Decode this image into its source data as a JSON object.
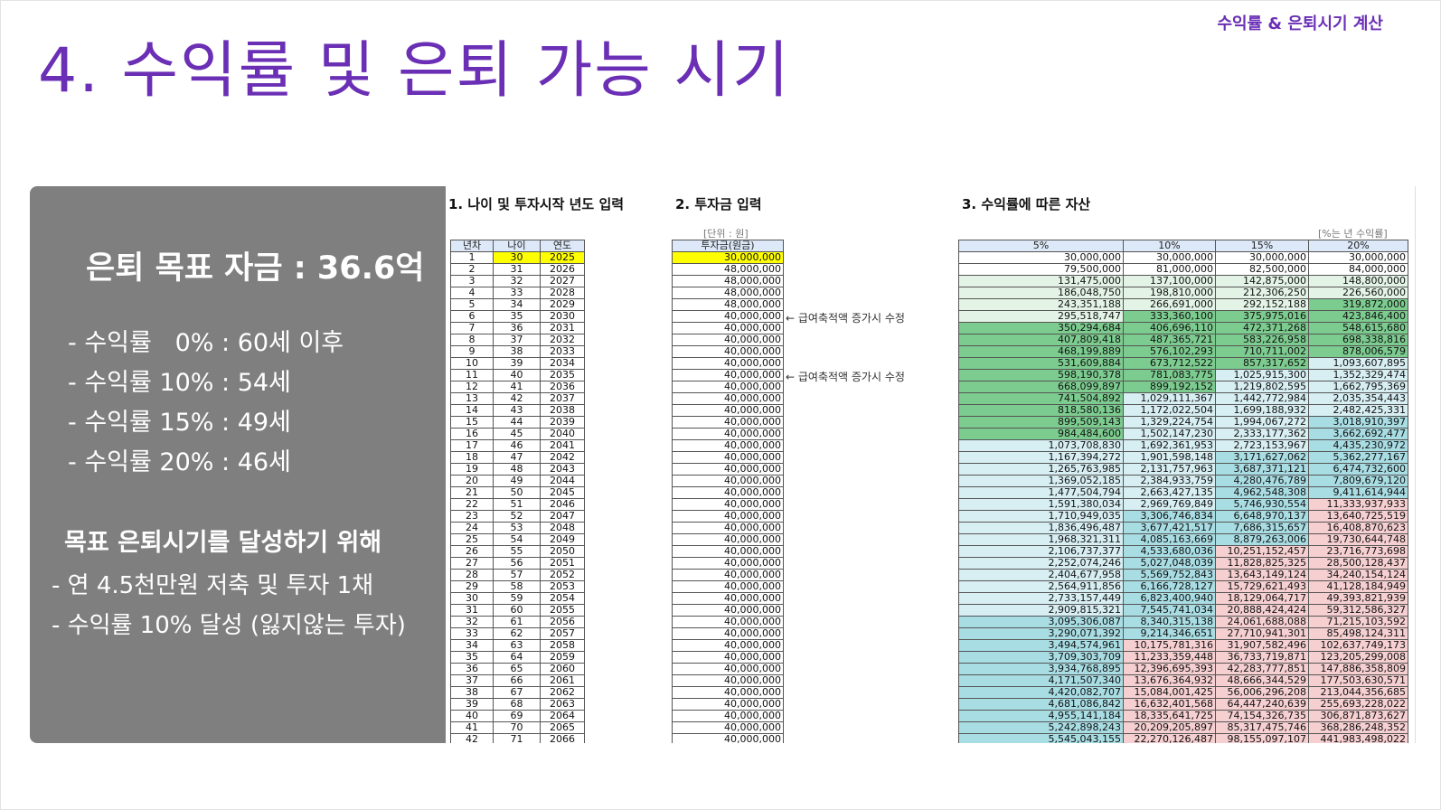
{
  "header": {
    "tag": "수익률 & 은퇴시기 계산",
    "title": "4. 수익률 및 은퇴 가능 시기"
  },
  "panel": {
    "headline": "은퇴 목표 자금 : 36.6억",
    "items": [
      "- 수익률   0% : 60세 이후",
      "- 수익률 10% : 54세",
      "- 수익률 15% : 49세",
      "- 수익률 20% : 46세"
    ],
    "subhead": "목표 은퇴시기를 달성하기 위해",
    "items2": [
      "- 연 4.5천만원 저축 및 투자 1채",
      "- 수익률 10% 달성 (잃지않는 투자)"
    ]
  },
  "sheet": {
    "sec1": "1. 나이 및 투자시작 년도 입력",
    "sec2": "2. 투자금 입력",
    "sec3": "3. 수익률에 따른 자산",
    "unit_won": "[단위 : 원]",
    "unit_rate": "[%는 년 수익률]",
    "col_year": "년차",
    "col_age": "나이",
    "col_yr": "연도",
    "col_inv": "투자금(원금)",
    "rates": [
      "5%",
      "10%",
      "15%",
      "20%"
    ],
    "note": "← 급여축적액 증가시 수정",
    "rows": [
      {
        "n": "1",
        "age": "30",
        "year": "2025",
        "inv": "30,000,000",
        "v": [
          "30,000,000",
          "30,000,000",
          "30,000,000",
          "30,000,000"
        ]
      },
      {
        "n": "2",
        "age": "31",
        "year": "2026",
        "inv": "48,000,000",
        "v": [
          "79,500,000",
          "81,000,000",
          "82,500,000",
          "84,000,000"
        ]
      },
      {
        "n": "3",
        "age": "32",
        "year": "2027",
        "inv": "48,000,000",
        "v": [
          "131,475,000",
          "137,100,000",
          "142,875,000",
          "148,800,000"
        ]
      },
      {
        "n": "4",
        "age": "33",
        "year": "2028",
        "inv": "48,000,000",
        "v": [
          "186,048,750",
          "198,810,000",
          "212,306,250",
          "226,560,000"
        ]
      },
      {
        "n": "5",
        "age": "34",
        "year": "2029",
        "inv": "48,000,000",
        "v": [
          "243,351,188",
          "266,691,000",
          "292,152,188",
          "319,872,000"
        ]
      },
      {
        "n": "6",
        "age": "35",
        "year": "2030",
        "inv": "40,000,000",
        "v": [
          "295,518,747",
          "333,360,100",
          "375,975,016",
          "423,846,400"
        ]
      },
      {
        "n": "7",
        "age": "36",
        "year": "2031",
        "inv": "40,000,000",
        "v": [
          "350,294,684",
          "406,696,110",
          "472,371,268",
          "548,615,680"
        ]
      },
      {
        "n": "8",
        "age": "37",
        "year": "2032",
        "inv": "40,000,000",
        "v": [
          "407,809,418",
          "487,365,721",
          "583,226,958",
          "698,338,816"
        ]
      },
      {
        "n": "9",
        "age": "38",
        "year": "2033",
        "inv": "40,000,000",
        "v": [
          "468,199,889",
          "576,102,293",
          "710,711,002",
          "878,006,579"
        ]
      },
      {
        "n": "10",
        "age": "39",
        "year": "2034",
        "inv": "40,000,000",
        "v": [
          "531,609,884",
          "673,712,522",
          "857,317,652",
          "1,093,607,895"
        ]
      },
      {
        "n": "11",
        "age": "40",
        "year": "2035",
        "inv": "40,000,000",
        "v": [
          "598,190,378",
          "781,083,775",
          "1,025,915,300",
          "1,352,329,474"
        ]
      },
      {
        "n": "12",
        "age": "41",
        "year": "2036",
        "inv": "40,000,000",
        "v": [
          "668,099,897",
          "899,192,152",
          "1,219,802,595",
          "1,662,795,369"
        ]
      },
      {
        "n": "13",
        "age": "42",
        "year": "2037",
        "inv": "40,000,000",
        "v": [
          "741,504,892",
          "1,029,111,367",
          "1,442,772,984",
          "2,035,354,443"
        ]
      },
      {
        "n": "14",
        "age": "43",
        "year": "2038",
        "inv": "40,000,000",
        "v": [
          "818,580,136",
          "1,172,022,504",
          "1,699,188,932",
          "2,482,425,331"
        ]
      },
      {
        "n": "15",
        "age": "44",
        "year": "2039",
        "inv": "40,000,000",
        "v": [
          "899,509,143",
          "1,329,224,754",
          "1,994,067,272",
          "3,018,910,397"
        ]
      },
      {
        "n": "16",
        "age": "45",
        "year": "2040",
        "inv": "40,000,000",
        "v": [
          "984,484,600",
          "1,502,147,230",
          "2,333,177,362",
          "3,662,692,477"
        ]
      },
      {
        "n": "17",
        "age": "46",
        "year": "2041",
        "inv": "40,000,000",
        "v": [
          "1,073,708,830",
          "1,692,361,953",
          "2,723,153,967",
          "4,435,230,972"
        ]
      },
      {
        "n": "18",
        "age": "47",
        "year": "2042",
        "inv": "40,000,000",
        "v": [
          "1,167,394,272",
          "1,901,598,148",
          "3,171,627,062",
          "5,362,277,167"
        ]
      },
      {
        "n": "19",
        "age": "48",
        "year": "2043",
        "inv": "40,000,000",
        "v": [
          "1,265,763,985",
          "2,131,757,963",
          "3,687,371,121",
          "6,474,732,600"
        ]
      },
      {
        "n": "20",
        "age": "49",
        "year": "2044",
        "inv": "40,000,000",
        "v": [
          "1,369,052,185",
          "2,384,933,759",
          "4,280,476,789",
          "7,809,679,120"
        ]
      },
      {
        "n": "21",
        "age": "50",
        "year": "2045",
        "inv": "40,000,000",
        "v": [
          "1,477,504,794",
          "2,663,427,135",
          "4,962,548,308",
          "9,411,614,944"
        ]
      },
      {
        "n": "22",
        "age": "51",
        "year": "2046",
        "inv": "40,000,000",
        "v": [
          "1,591,380,034",
          "2,969,769,849",
          "5,746,930,554",
          "11,333,937,933"
        ]
      },
      {
        "n": "23",
        "age": "52",
        "year": "2047",
        "inv": "40,000,000",
        "v": [
          "1,710,949,035",
          "3,306,746,834",
          "6,648,970,137",
          "13,640,725,519"
        ]
      },
      {
        "n": "24",
        "age": "53",
        "year": "2048",
        "inv": "40,000,000",
        "v": [
          "1,836,496,487",
          "3,677,421,517",
          "7,686,315,657",
          "16,408,870,623"
        ]
      },
      {
        "n": "25",
        "age": "54",
        "year": "2049",
        "inv": "40,000,000",
        "v": [
          "1,968,321,311",
          "4,085,163,669",
          "8,879,263,006",
          "19,730,644,748"
        ]
      },
      {
        "n": "26",
        "age": "55",
        "year": "2050",
        "inv": "40,000,000",
        "v": [
          "2,106,737,377",
          "4,533,680,036",
          "10,251,152,457",
          "23,716,773,698"
        ]
      },
      {
        "n": "27",
        "age": "56",
        "year": "2051",
        "inv": "40,000,000",
        "v": [
          "2,252,074,246",
          "5,027,048,039",
          "11,828,825,325",
          "28,500,128,437"
        ]
      },
      {
        "n": "28",
        "age": "57",
        "year": "2052",
        "inv": "40,000,000",
        "v": [
          "2,404,677,958",
          "5,569,752,843",
          "13,643,149,124",
          "34,240,154,124"
        ]
      },
      {
        "n": "29",
        "age": "58",
        "year": "2053",
        "inv": "40,000,000",
        "v": [
          "2,564,911,856",
          "6,166,728,127",
          "15,729,621,493",
          "41,128,184,949"
        ]
      },
      {
        "n": "30",
        "age": "59",
        "year": "2054",
        "inv": "40,000,000",
        "v": [
          "2,733,157,449",
          "6,823,400,940",
          "18,129,064,717",
          "49,393,821,939"
        ]
      },
      {
        "n": "31",
        "age": "60",
        "year": "2055",
        "inv": "40,000,000",
        "v": [
          "2,909,815,321",
          "7,545,741,034",
          "20,888,424,424",
          "59,312,586,327"
        ]
      },
      {
        "n": "32",
        "age": "61",
        "year": "2056",
        "inv": "40,000,000",
        "v": [
          "3,095,306,087",
          "8,340,315,138",
          "24,061,688,088",
          "71,215,103,592"
        ]
      },
      {
        "n": "33",
        "age": "62",
        "year": "2057",
        "inv": "40,000,000",
        "v": [
          "3,290,071,392",
          "9,214,346,651",
          "27,710,941,301",
          "85,498,124,311"
        ]
      },
      {
        "n": "34",
        "age": "63",
        "year": "2058",
        "inv": "40,000,000",
        "v": [
          "3,494,574,961",
          "10,175,781,316",
          "31,907,582,496",
          "102,637,749,173"
        ]
      },
      {
        "n": "35",
        "age": "64",
        "year": "2059",
        "inv": "40,000,000",
        "v": [
          "3,709,303,709",
          "11,233,359,448",
          "36,733,719,871",
          "123,205,299,008"
        ]
      },
      {
        "n": "36",
        "age": "65",
        "year": "2060",
        "inv": "40,000,000",
        "v": [
          "3,934,768,895",
          "12,396,695,393",
          "42,283,777,851",
          "147,886,358,809"
        ]
      },
      {
        "n": "37",
        "age": "66",
        "year": "2061",
        "inv": "40,000,000",
        "v": [
          "4,171,507,340",
          "13,676,364,932",
          "48,666,344,529",
          "177,503,630,571"
        ]
      },
      {
        "n": "38",
        "age": "67",
        "year": "2062",
        "inv": "40,000,000",
        "v": [
          "4,420,082,707",
          "15,084,001,425",
          "56,006,296,208",
          "213,044,356,685"
        ]
      },
      {
        "n": "39",
        "age": "68",
        "year": "2063",
        "inv": "40,000,000",
        "v": [
          "4,681,086,842",
          "16,632,401,568",
          "64,447,240,639",
          "255,693,228,022"
        ]
      },
      {
        "n": "40",
        "age": "69",
        "year": "2064",
        "inv": "40,000,000",
        "v": [
          "4,955,141,184",
          "18,335,641,725",
          "74,154,326,735",
          "306,871,873,627"
        ]
      },
      {
        "n": "41",
        "age": "70",
        "year": "2065",
        "inv": "40,000,000",
        "v": [
          "5,242,898,243",
          "20,209,205,897",
          "85,317,475,746",
          "368,286,248,352"
        ]
      },
      {
        "n": "42",
        "age": "71",
        "year": "2066",
        "inv": "40,000,000",
        "v": [
          "5,545,043,155",
          "22,270,126,487",
          "98,155,097,107",
          "441,983,498,022"
        ]
      }
    ],
    "colors": {
      "yellow": "#ffff00",
      "header": "#dde9f8",
      "green_light": "#e3f4e6",
      "green_dark": "#7ccb8f",
      "teal": "#a9dde4",
      "pink": "#f6cfd1"
    }
  }
}
